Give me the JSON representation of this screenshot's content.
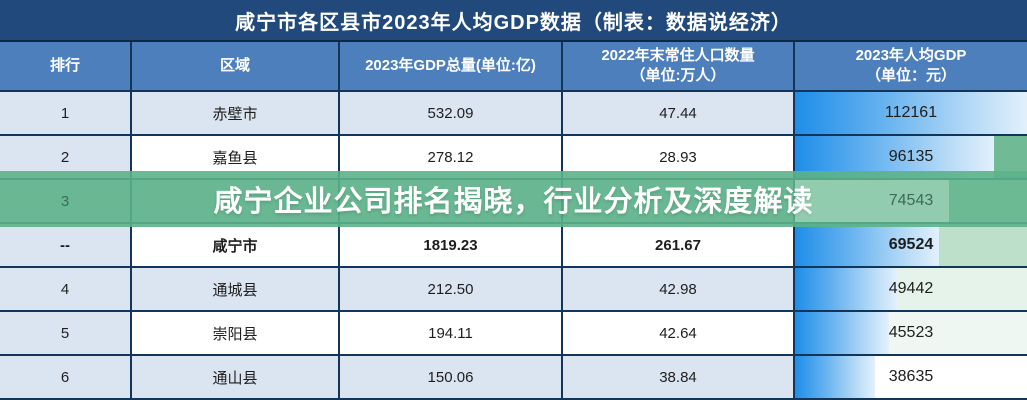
{
  "title": "咸宁市各区县市2023年人均GDP数据（制表：数据说经济）",
  "banner": {
    "text": "咸宁企业公司排名揭晓，行业分析及深度解读",
    "color": "#5cb288"
  },
  "colors": {
    "title_bar": "#21497b",
    "header_row": "#4d7fbd",
    "row_shade": "#dbe5f1",
    "grid_border": "#14355a",
    "data_bar_blue": "#1e8ee9",
    "banner_green": "#5cb288"
  },
  "chart_data": {
    "type": "table",
    "title": "咸宁市各区县市2023年人均GDP数据（制表：数据说经济）",
    "columns": [
      [
        "排行"
      ],
      [
        "区域"
      ],
      [
        "2023年GDP总量(单位:亿)"
      ],
      [
        "2022年末常住人口数量",
        "（单位:万人）"
      ],
      [
        "2023年人均GDP",
        "（单位：元）"
      ]
    ],
    "bar_column": "2023年人均GDP（单位：元）",
    "bar_max": 112161,
    "rows": [
      {
        "rank": "1",
        "region": "赤壁市",
        "gdp": "532.09",
        "population": "47.44",
        "per_capita": "112161"
      },
      {
        "rank": "2",
        "region": "嘉鱼县",
        "gdp": "278.12",
        "population": "28.93",
        "per_capita": "96135"
      },
      {
        "rank": "3",
        "region": "",
        "gdp": "",
        "population": "",
        "per_capita": "74543",
        "obscured": true
      },
      {
        "rank": "--",
        "region": "咸宁市",
        "gdp": "1819.23",
        "population": "261.67",
        "per_capita": "69524",
        "bold": true
      },
      {
        "rank": "4",
        "region": "通城县",
        "gdp": "212.50",
        "population": "42.98",
        "per_capita": "49442"
      },
      {
        "rank": "5",
        "region": "崇阳县",
        "gdp": "194.11",
        "population": "42.64",
        "per_capita": "45523"
      },
      {
        "rank": "6",
        "region": "通山县",
        "gdp": "150.06",
        "population": "38.84",
        "per_capita": "38635"
      }
    ]
  }
}
